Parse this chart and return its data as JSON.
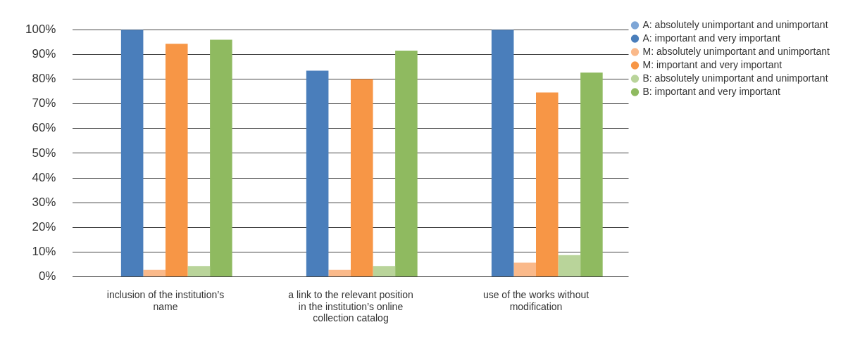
{
  "chart_data": {
    "type": "bar",
    "categories": [
      "inclusion of the institution’s name",
      "a link to the relevant position in the institution’s online collection catalog",
      "use of the works without modification"
    ],
    "series": [
      {
        "name": "A: absolutely unimportant and unimportant",
        "color": "#7ea6d6",
        "values": [
          0,
          0,
          0
        ]
      },
      {
        "name": "A: important and very important",
        "color": "#4a7ebb",
        "values": [
          100,
          83.4,
          100
        ]
      },
      {
        "name": "M: absolutely unimportant and unimportant",
        "color": "#fab98a",
        "values": [
          2.8,
          2.8,
          5.7
        ]
      },
      {
        "name": "M: important and very important",
        "color": "#f79646",
        "values": [
          94.3,
          80,
          74.6
        ]
      },
      {
        "name": "B: absolutely unimportant and unimportant",
        "color": "#b9d49a",
        "values": [
          4.4,
          4.4,
          8.8
        ]
      },
      {
        "name": "B: important and very important",
        "color": "#8fba60",
        "values": [
          95.9,
          91.5,
          82.6
        ]
      }
    ],
    "ylim": [
      0,
      100
    ],
    "yticks": [
      {
        "value": 0,
        "label": "0%"
      },
      {
        "value": 10,
        "label": "10%"
      },
      {
        "value": 20,
        "label": "20%"
      },
      {
        "value": 30,
        "label": "30%"
      },
      {
        "value": 40,
        "label": "40%"
      },
      {
        "value": 50,
        "label": "50%"
      },
      {
        "value": 60,
        "label": "60%"
      },
      {
        "value": 70,
        "label": "70%"
      },
      {
        "value": 80,
        "label": "80%"
      },
      {
        "value": 90,
        "label": "90%"
      },
      {
        "value": 100,
        "label": "100%"
      }
    ],
    "grid": "y",
    "legend": "top right"
  }
}
